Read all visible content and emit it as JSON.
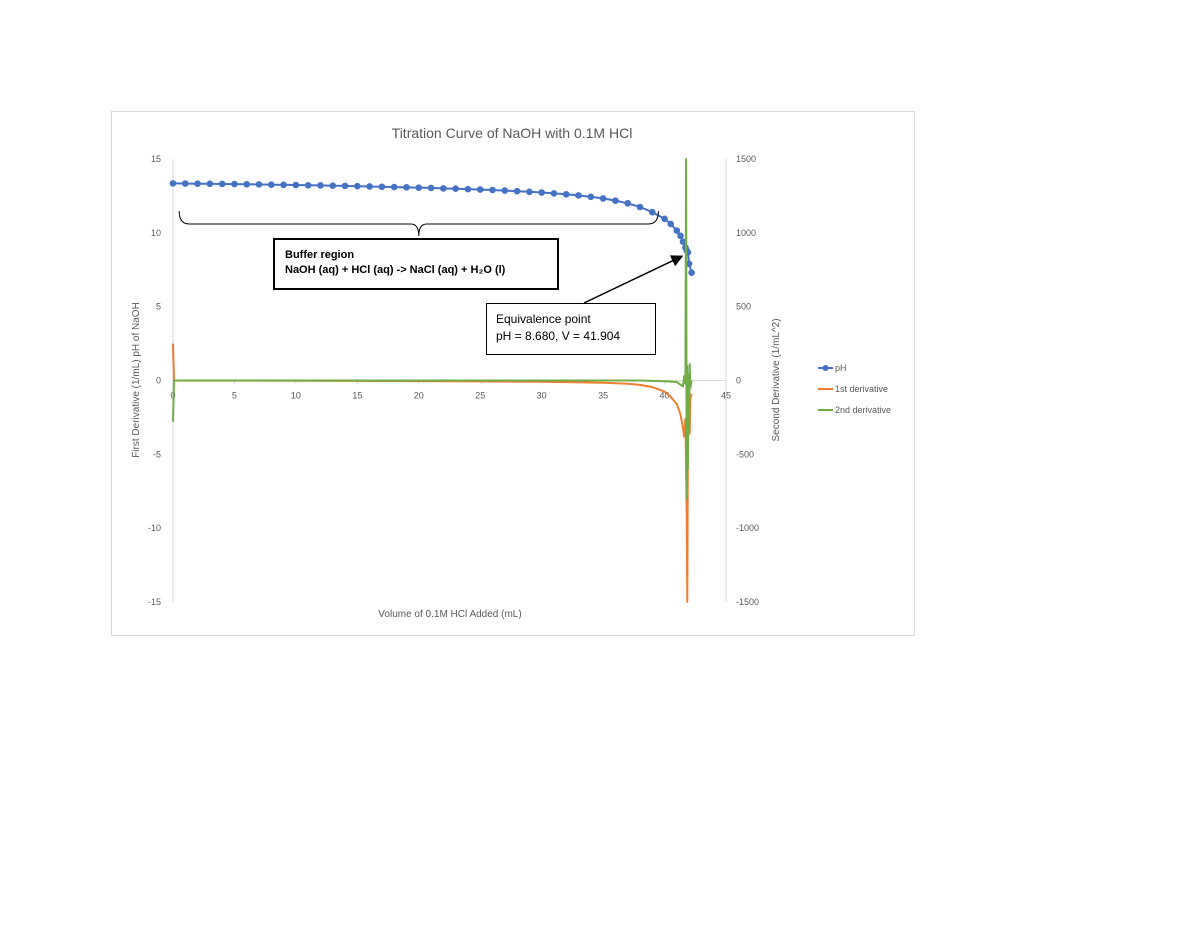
{
  "chart_data": {
    "type": "line",
    "title": "Titration Curve of NaOH with 0.1M HCl",
    "xlabel": "Volume of 0.1M HCl Added (mL)",
    "ylabel_left": "First Derivative (1/mL) pH of NaOH",
    "ylabel_right": "Second Derivative (1/mL^2)",
    "xlim": [
      0,
      45
    ],
    "ylim_left": [
      -15,
      15
    ],
    "ylim_right": [
      -1500,
      1500
    ],
    "x_ticks": [
      "0",
      "5",
      "10",
      "15",
      "20",
      "25",
      "30",
      "35",
      "40",
      "45"
    ],
    "y_left_ticks": [
      "15",
      "10",
      "5",
      "0",
      "-5",
      "-10",
      "-15"
    ],
    "y_right_ticks": [
      "1500",
      "1000",
      "500",
      "0",
      "-500",
      "-1000",
      "-1500"
    ],
    "grid": false,
    "legend_position": "right",
    "series": [
      {
        "name": "pH",
        "axis": "left",
        "color": "#4472c4",
        "marker": "circle",
        "x": [
          0,
          1,
          2,
          3,
          4,
          5,
          6,
          7,
          8,
          9,
          10,
          11,
          12,
          13,
          14,
          15,
          16,
          17,
          18,
          19,
          20,
          21,
          22,
          23,
          24,
          25,
          26,
          27,
          28,
          29,
          30,
          31,
          32,
          33,
          34,
          35,
          36,
          37,
          38,
          39,
          40,
          40.5,
          41,
          41.3,
          41.5,
          41.7,
          41.8,
          41.904,
          42.0,
          42.2
        ],
        "y": [
          13.35,
          13.34,
          13.33,
          13.32,
          13.31,
          13.3,
          13.29,
          13.28,
          13.26,
          13.25,
          13.24,
          13.22,
          13.21,
          13.19,
          13.18,
          13.16,
          13.14,
          13.12,
          13.1,
          13.08,
          13.06,
          13.04,
          13.01,
          12.99,
          12.96,
          12.93,
          12.9,
          12.86,
          12.82,
          12.78,
          12.73,
          12.67,
          12.61,
          12.53,
          12.44,
          12.33,
          12.18,
          12.0,
          11.75,
          11.4,
          10.95,
          10.6,
          10.15,
          9.8,
          9.4,
          9.0,
          8.8,
          8.68,
          7.9,
          7.3
        ]
      },
      {
        "name": "1st derivative",
        "axis": "left",
        "color": "#ed7d31",
        "marker": "none",
        "x": [
          0,
          0.08,
          0.3,
          5,
          10,
          15,
          20,
          25,
          30,
          35,
          37,
          38,
          39,
          40,
          40.5,
          41,
          41.3,
          41.5,
          41.6,
          41.7,
          41.8,
          41.85,
          41.9,
          41.95,
          42.0,
          42.05,
          42.1,
          42.2
        ],
        "y": [
          2.5,
          0.0,
          -0.01,
          -0.01,
          -0.02,
          -0.03,
          -0.04,
          -0.06,
          -0.09,
          -0.15,
          -0.22,
          -0.3,
          -0.45,
          -0.75,
          -1.1,
          -1.6,
          -2.3,
          -3.2,
          -3.8,
          -2.6,
          -9.0,
          -15.0,
          -3.8,
          -2.6,
          -2.2,
          -3.6,
          -1.2,
          -0.9
        ]
      },
      {
        "name": "2nd derivative",
        "axis": "right",
        "color": "#70ad47",
        "marker": "none",
        "x": [
          0,
          0.08,
          0.3,
          10,
          20,
          30,
          38,
          40,
          41,
          41.5,
          41.6,
          41.7,
          41.75,
          41.8,
          41.85,
          41.9,
          41.95,
          42.0,
          42.05,
          42.1,
          42.2
        ],
        "y": [
          -280,
          0,
          0,
          0,
          0,
          0,
          0,
          -5,
          -10,
          -40,
          30,
          -20,
          1500,
          -800,
          100,
          -600,
          40,
          -300,
          110,
          -50,
          0
        ]
      }
    ],
    "annotations": {
      "buffer": {
        "line1": "Buffer region",
        "line2": "NaOH (aq) + HCl (aq) -> NaCl (aq) + H₂O (l)",
        "bracket_x": [
          0.5,
          39.5
        ],
        "bracket_y": 10.6
      },
      "equivalence": {
        "line1": "Equivalence point",
        "line2": "pH = 8.680, V = 41.904",
        "arrow_target_x": 41.904,
        "arrow_target_y": 8.68
      }
    }
  }
}
